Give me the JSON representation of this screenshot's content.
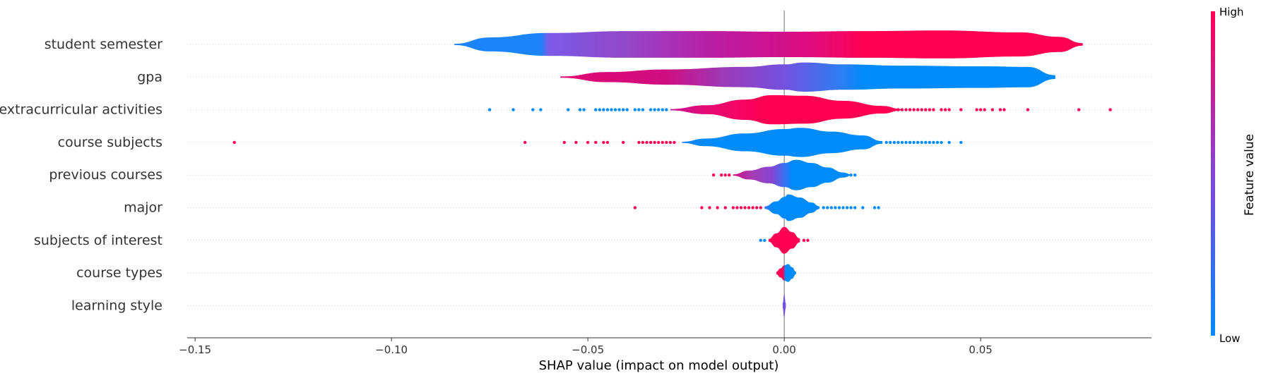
{
  "chart_data": {
    "type": "violin",
    "title": "",
    "xlabel": "SHAP value (impact on model output)",
    "ylabel": "",
    "xlim": [
      -0.152,
      0.0935
    ],
    "xticks": [
      -0.15,
      -0.1,
      -0.05,
      0.0,
      0.05
    ],
    "xtick_labels": [
      "−0.15",
      "−0.10",
      "−0.05",
      "0.00",
      "0.05"
    ],
    "grid": false,
    "zero_line": true,
    "colorbar": {
      "title": "Feature value",
      "high_label": "High",
      "low_label": "Low",
      "low_color": "#008bfb",
      "high_color": "#ff0052"
    },
    "features": [
      {
        "name": "student semester",
        "profile": [
          [
            -0.084,
            0.05
          ],
          [
            -0.075,
            0.55
          ],
          [
            -0.06,
            0.9
          ],
          [
            -0.04,
            1.05
          ],
          [
            -0.02,
            1.05
          ],
          [
            0.0,
            1.0
          ],
          [
            0.02,
            1.05
          ],
          [
            0.04,
            1.1
          ],
          [
            0.06,
            0.95
          ],
          [
            0.07,
            0.6
          ],
          [
            0.076,
            0.1
          ]
        ],
        "colors": [
          [
            -0.084,
            "#1c84f9"
          ],
          [
            -0.062,
            "#1c84f9"
          ],
          [
            -0.06,
            "#7a5ae8"
          ],
          [
            -0.04,
            "#9447c8"
          ],
          [
            -0.02,
            "#b81fa8"
          ],
          [
            0.0,
            "#d2108a"
          ],
          [
            0.01,
            "#e60a75"
          ],
          [
            0.02,
            "#ff0052"
          ],
          [
            0.076,
            "#ff0052"
          ]
        ],
        "outliers_low": [],
        "outliers_high": []
      },
      {
        "name": "gpa",
        "profile": [
          [
            -0.057,
            0.05
          ],
          [
            -0.045,
            0.4
          ],
          [
            -0.03,
            0.6
          ],
          [
            -0.01,
            0.8
          ],
          [
            0.0,
            1.0
          ],
          [
            0.005,
            1.15
          ],
          [
            0.015,
            1.0
          ],
          [
            0.03,
            0.9
          ],
          [
            0.05,
            0.85
          ],
          [
            0.062,
            0.8
          ],
          [
            0.069,
            0.15
          ]
        ],
        "colors": [
          [
            -0.057,
            "#e1096f"
          ],
          [
            -0.03,
            "#d00e82"
          ],
          [
            -0.015,
            "#9a3bb9"
          ],
          [
            0.0,
            "#7452df"
          ],
          [
            0.015,
            "#2a7ff5"
          ],
          [
            0.02,
            "#008bfb"
          ],
          [
            0.069,
            "#008bfb"
          ]
        ],
        "outliers_low": [],
        "outliers_high": []
      },
      {
        "name": "extracurricular activities",
        "profile": [
          [
            -0.029,
            0.05
          ],
          [
            -0.02,
            0.35
          ],
          [
            -0.01,
            0.8
          ],
          [
            -0.003,
            1.15
          ],
          [
            0.005,
            1.1
          ],
          [
            0.015,
            0.7
          ],
          [
            0.025,
            0.3
          ],
          [
            0.03,
            0.05
          ]
        ],
        "colors": [
          [
            -0.029,
            "#c51590"
          ],
          [
            -0.02,
            "#e60a75"
          ],
          [
            -0.005,
            "#ff0052"
          ],
          [
            0.03,
            "#ff0052"
          ]
        ],
        "outliers_low": [
          -0.075,
          -0.069,
          -0.064,
          -0.062,
          -0.055,
          -0.052,
          -0.051,
          -0.048,
          -0.047,
          -0.046,
          -0.045,
          -0.044,
          -0.043,
          -0.042,
          -0.041,
          -0.04,
          -0.038,
          -0.037,
          -0.036,
          -0.034,
          -0.033,
          -0.032,
          -0.031,
          -0.03
        ],
        "outliers_high": [
          0.026,
          0.027,
          0.028,
          0.029,
          0.03,
          0.031,
          0.032,
          0.033,
          0.034,
          0.035,
          0.036,
          0.037,
          0.038,
          0.04,
          0.041,
          0.042,
          0.045,
          0.049,
          0.05,
          0.051,
          0.053,
          0.055,
          0.056,
          0.062,
          0.075,
          0.083
        ]
      },
      {
        "name": "course subjects",
        "profile": [
          [
            -0.026,
            0.05
          ],
          [
            -0.02,
            0.3
          ],
          [
            -0.01,
            0.7
          ],
          [
            0.0,
            1.05
          ],
          [
            0.004,
            1.15
          ],
          [
            0.012,
            0.85
          ],
          [
            0.02,
            0.55
          ],
          [
            0.025,
            0.1
          ]
        ],
        "colors": [
          [
            -0.026,
            "#1c84f9"
          ],
          [
            -0.02,
            "#008bfb"
          ],
          [
            0.025,
            "#008bfb"
          ]
        ],
        "outliers_low": [
          -0.14,
          -0.066,
          -0.056,
          -0.053,
          -0.05,
          -0.048,
          -0.046,
          -0.045,
          -0.041,
          -0.037,
          -0.036,
          -0.035,
          -0.034,
          -0.033,
          -0.032,
          -0.031,
          -0.03,
          -0.029,
          -0.028
        ],
        "outliers_high": [
          0.026,
          0.027,
          0.028,
          0.029,
          0.03,
          0.031,
          0.032,
          0.033,
          0.034,
          0.035,
          0.036,
          0.037,
          0.038,
          0.039,
          0.04,
          0.042,
          0.045
        ]
      },
      {
        "name": "previous courses",
        "profile": [
          [
            -0.013,
            0.05
          ],
          [
            -0.009,
            0.35
          ],
          [
            -0.004,
            0.65
          ],
          [
            0.0,
            0.95
          ],
          [
            0.003,
            1.2
          ],
          [
            0.007,
            0.95
          ],
          [
            0.011,
            0.6
          ],
          [
            0.015,
            0.2
          ],
          [
            0.017,
            0.05
          ]
        ],
        "colors": [
          [
            -0.013,
            "#d00e82"
          ],
          [
            -0.008,
            "#a53db5"
          ],
          [
            -0.003,
            "#8445d4"
          ],
          [
            0.0,
            "#3b72f0"
          ],
          [
            0.002,
            "#008bfb"
          ],
          [
            0.017,
            "#008bfb"
          ]
        ],
        "outliers_low": [
          -0.018,
          -0.016,
          -0.015,
          -0.014
        ],
        "outliers_high": [
          0.015,
          0.016,
          0.017,
          0.018
        ]
      },
      {
        "name": "major",
        "profile": [
          [
            -0.005,
            0.1
          ],
          [
            -0.002,
            0.5
          ],
          [
            0.0,
            0.85
          ],
          [
            0.001,
            1.05
          ],
          [
            0.004,
            0.8
          ],
          [
            0.007,
            0.4
          ],
          [
            0.009,
            0.1
          ]
        ],
        "colors": [
          [
            -0.005,
            "#3b72f0"
          ],
          [
            -0.003,
            "#008bfb"
          ],
          [
            0.009,
            "#008bfb"
          ]
        ],
        "outliers_low": [
          -0.038,
          -0.021,
          -0.019,
          -0.017,
          -0.015,
          -0.013,
          -0.012,
          -0.011,
          -0.01,
          -0.009,
          -0.008,
          -0.007,
          -0.006
        ],
        "outliers_high": [
          0.01,
          0.011,
          0.012,
          0.013,
          0.014,
          0.015,
          0.016,
          0.017,
          0.018,
          0.02,
          0.023,
          0.024
        ]
      },
      {
        "name": "subjects of interest",
        "profile": [
          [
            -0.004,
            0.1
          ],
          [
            -0.002,
            0.55
          ],
          [
            0.0,
            1.05
          ],
          [
            0.002,
            0.65
          ],
          [
            0.004,
            0.15
          ]
        ],
        "colors": [
          [
            -0.004,
            "#ff0052"
          ],
          [
            0.004,
            "#ff0052"
          ]
        ],
        "outliers_low": [
          -0.006,
          -0.005
        ],
        "outliers_high": [
          0.005,
          0.006
        ]
      },
      {
        "name": "course types",
        "profile": [
          [
            -0.002,
            0.1
          ],
          [
            -0.001,
            0.35
          ],
          [
            0.0,
            0.6
          ],
          [
            0.001,
            0.7
          ],
          [
            0.002,
            0.45
          ],
          [
            0.003,
            0.1
          ]
        ],
        "colors": [
          [
            -0.002,
            "#ff0052"
          ],
          [
            -0.0003,
            "#ff0052"
          ],
          [
            0.0003,
            "#008bfb"
          ],
          [
            0.003,
            "#008bfb"
          ]
        ],
        "outliers_low": [],
        "outliers_high": []
      },
      {
        "name": "learning style",
        "profile": [
          [
            -0.0004,
            0.2
          ],
          [
            0.0,
            0.9
          ],
          [
            0.0004,
            0.2
          ]
        ],
        "colors": [
          [
            -0.0004,
            "#7452df"
          ],
          [
            0.0004,
            "#7452df"
          ]
        ],
        "outliers_low": [],
        "outliers_high": []
      }
    ]
  }
}
